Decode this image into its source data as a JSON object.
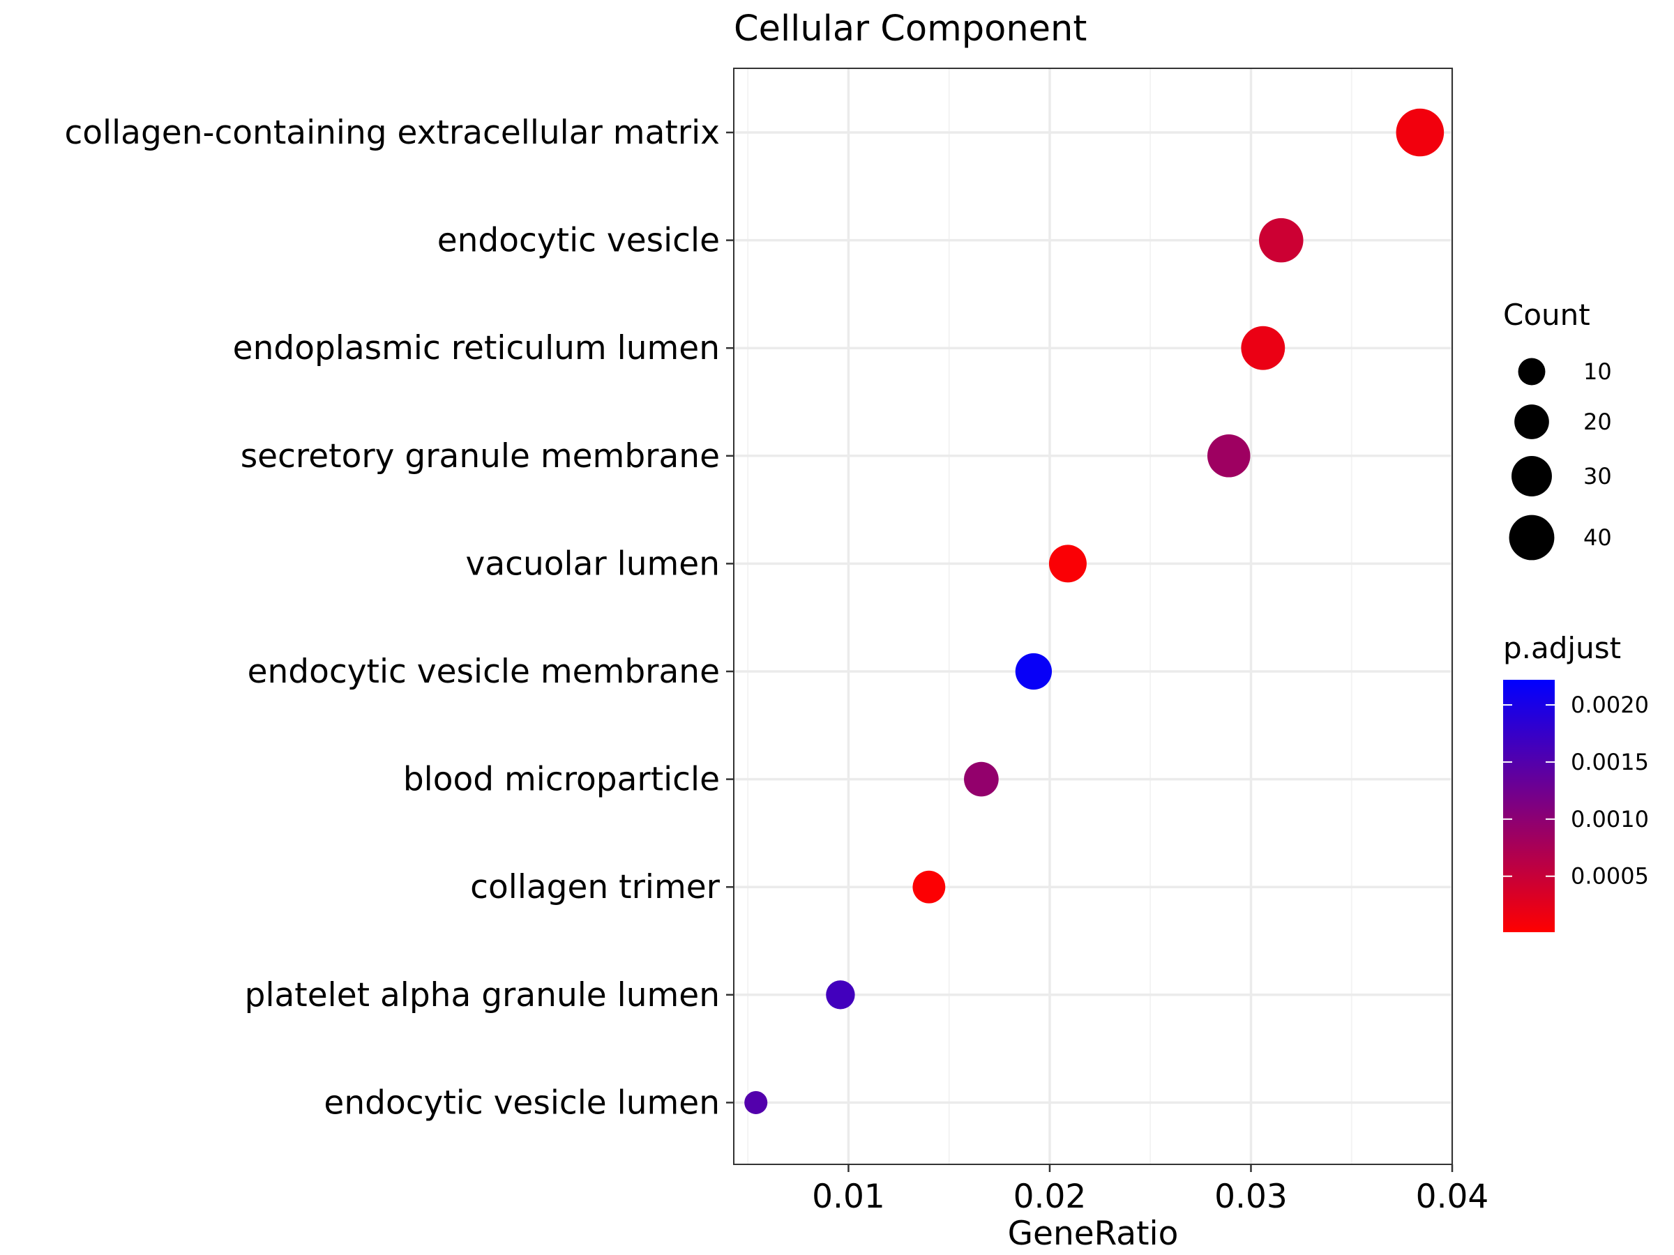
{
  "chart_data": {
    "type": "scatter",
    "title": "Cellular Component",
    "xlabel": "GeneRatio",
    "ylabel": "",
    "xlim": [
      0.0043,
      0.04
    ],
    "xticks": [
      0.01,
      0.02,
      0.03,
      0.04
    ],
    "xtick_labels": [
      "0.01",
      "0.02",
      "0.03",
      "0.04"
    ],
    "grid": true,
    "categories": [
      "collagen-containing extracellular matrix",
      "endocytic vesicle",
      "endoplasmic reticulum lumen",
      "secretory granule membrane",
      "vacuolar lumen",
      "endocytic vesicle membrane",
      "blood microparticle",
      "collagen trimer",
      "platelet alpha granule lumen",
      "endocytic vesicle lumen"
    ],
    "points": [
      {
        "category": "collagen-containing extracellular matrix",
        "gene_ratio": 0.0384,
        "count": 46,
        "p_adjust": 0.00012
      },
      {
        "category": "endocytic vesicle",
        "gene_ratio": 0.0315,
        "count": 38,
        "p_adjust": 0.00045
      },
      {
        "category": "endoplasmic reticulum lumen",
        "gene_ratio": 0.0306,
        "count": 37,
        "p_adjust": 0.00018
      },
      {
        "category": "secretory granule membrane",
        "gene_ratio": 0.0289,
        "count": 35,
        "p_adjust": 0.00085
      },
      {
        "category": "vacuolar lumen",
        "gene_ratio": 0.0209,
        "count": 25,
        "p_adjust": 5e-05
      },
      {
        "category": "endocytic vesicle membrane",
        "gene_ratio": 0.0192,
        "count": 23,
        "p_adjust": 0.00215
      },
      {
        "category": "blood microparticle",
        "gene_ratio": 0.0166,
        "count": 20,
        "p_adjust": 0.00095
      },
      {
        "category": "collagen trimer",
        "gene_ratio": 0.014,
        "count": 17,
        "p_adjust": 4e-05
      },
      {
        "category": "platelet alpha granule lumen",
        "gene_ratio": 0.0096,
        "count": 12,
        "p_adjust": 0.00165
      },
      {
        "category": "endocytic vesicle lumen",
        "gene_ratio": 0.0054,
        "count": 6,
        "p_adjust": 0.0015
      }
    ],
    "legend_size": {
      "title": "Count",
      "values": [
        10,
        20,
        30,
        40
      ],
      "labels": [
        "10",
        "20",
        "30",
        "40"
      ],
      "color": "#000000"
    },
    "legend_color": {
      "title": "p.adjust",
      "range": [
        1e-05,
        0.00222
      ],
      "ticks": [
        0.0005,
        0.001,
        0.0015,
        0.002
      ],
      "tick_labels": [
        "0.0005",
        "0.0010",
        "0.0015",
        "0.0020"
      ],
      "low_color": "#ff0000",
      "high_color": "#0000ff"
    },
    "legend_position": "right"
  }
}
